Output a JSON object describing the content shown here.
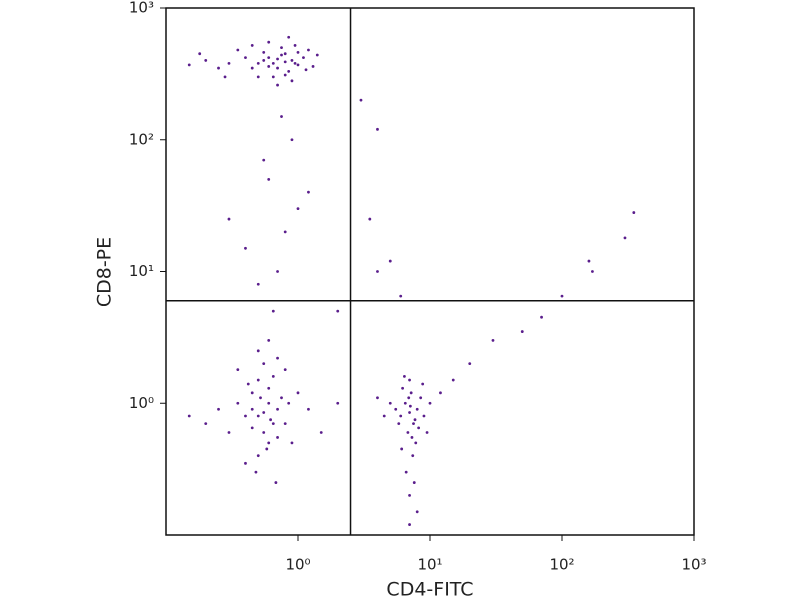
{
  "chart_data": {
    "type": "scatter",
    "x_label": "CD4-FITC",
    "y_label": "CD8-PE",
    "xlog": true,
    "ylog": true,
    "color": "#5a1e8c",
    "xlim": [
      0.1,
      1000
    ],
    "ylim": [
      0.1,
      1000
    ],
    "xticks": [
      {
        "value": 1,
        "label": "10⁰"
      },
      {
        "value": 10,
        "label": "10¹"
      },
      {
        "value": 100,
        "label": "10²"
      },
      {
        "value": 1000,
        "label": "10³"
      }
    ],
    "yticks": [
      {
        "value": 1,
        "label": "10⁰"
      },
      {
        "value": 10,
        "label": "10¹"
      },
      {
        "value": 100,
        "label": "10²"
      },
      {
        "value": 1000,
        "label": "10³"
      }
    ],
    "quadrant_x": 2.5,
    "quadrant_y": 6,
    "x": [
      0.5,
      0.6,
      0.7,
      0.8,
      0.9,
      1.0,
      0.65,
      0.75,
      0.55,
      0.45,
      0.85,
      1.1,
      1.2,
      0.95,
      0.7,
      0.6,
      0.8,
      0.5,
      0.4,
      0.3,
      0.25,
      0.2,
      0.15,
      0.18,
      1.3,
      1.4,
      0.9,
      0.7,
      0.6,
      0.85,
      0.35,
      0.75,
      0.65,
      0.55,
      1.0,
      0.8,
      0.45,
      0.28,
      1.15,
      0.95,
      0.5,
      0.6,
      0.55,
      0.45,
      0.7,
      0.65,
      0.4,
      0.5,
      0.6,
      0.75,
      0.35,
      0.55,
      0.5,
      0.8,
      0.3,
      0.6,
      0.45,
      0.7,
      0.55,
      0.65,
      0.5,
      0.6,
      0.4,
      0.85,
      0.25,
      0.2,
      0.9,
      1.0,
      0.45,
      0.62,
      0.52,
      0.58,
      0.7,
      0.35,
      0.48,
      0.68,
      0.15,
      1.2,
      0.8,
      0.42,
      7,
      6.5,
      7.5,
      8,
      6,
      7.2,
      6.8,
      8.5,
      5.5,
      7,
      7.8,
      6.2,
      9,
      5,
      7.4,
      6.6,
      7.1,
      8.2,
      6.9,
      5.8,
      7.6,
      7,
      10,
      12,
      4.5,
      6.4,
      8.8,
      7.3,
      6.1,
      15,
      8,
      7,
      4,
      9.5,
      7.7,
      0.7,
      0.8,
      0.6,
      0.9,
      0.5,
      1.0,
      0.4,
      0.75,
      0.65,
      1.2,
      0.3,
      0.55,
      3,
      4,
      3.5,
      4,
      5,
      6,
      160,
      170,
      300,
      350,
      100,
      70,
      50,
      30,
      20,
      2,
      1.5,
      2
    ],
    "values": [
      380,
      420,
      350,
      450,
      400,
      370,
      300,
      500,
      460,
      350,
      330,
      420,
      480,
      520,
      410,
      360,
      390,
      300,
      420,
      380,
      350,
      400,
      370,
      450,
      360,
      440,
      280,
      260,
      550,
      600,
      480,
      440,
      380,
      400,
      460,
      310,
      520,
      300,
      340,
      380,
      0.8,
      1.0,
      0.6,
      1.2,
      0.9,
      0.7,
      0.8,
      1.5,
      0.5,
      1.1,
      1.0,
      2.0,
      0.4,
      0.7,
      0.6,
      1.3,
      0.9,
      0.55,
      0.85,
      1.6,
      2.5,
      3.0,
      0.35,
      1.0,
      0.9,
      0.7,
      0.5,
      1.2,
      0.65,
      0.75,
      1.1,
      0.45,
      2.2,
      1.8,
      0.3,
      0.25,
      0.8,
      0.9,
      1.8,
      1.4,
      0.85,
      1.0,
      0.7,
      0.9,
      0.8,
      1.2,
      0.6,
      1.1,
      0.9,
      1.5,
      0.5,
      1.3,
      0.8,
      1.0,
      0.4,
      0.3,
      0.95,
      0.65,
      1.1,
      0.7,
      0.25,
      0.2,
      1.0,
      1.2,
      0.8,
      1.6,
      1.4,
      0.55,
      0.45,
      1.5,
      0.15,
      0.12,
      1.1,
      0.6,
      0.75,
      10,
      20,
      50,
      100,
      8,
      30,
      15,
      150,
      5,
      40,
      25,
      70,
      200,
      120,
      25,
      10,
      12,
      6.5,
      12,
      10,
      18,
      28,
      6.5,
      4.5,
      3.5,
      3,
      2,
      1,
      0.6,
      5
    ]
  }
}
